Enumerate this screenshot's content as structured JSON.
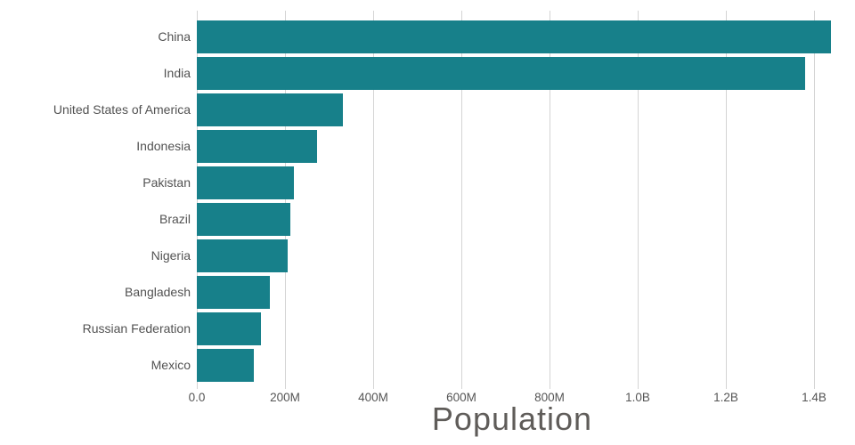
{
  "chart_data": {
    "type": "bar",
    "orientation": "horizontal",
    "title": "Population",
    "xlabel": "Population",
    "ylabel": "",
    "categories": [
      "China",
      "India",
      "United States of America",
      "Indonesia",
      "Pakistan",
      "Brazil",
      "Nigeria",
      "Bangladesh",
      "Russian Federation",
      "Mexico"
    ],
    "values_millions": [
      1439.3,
      1380.0,
      331.0,
      273.5,
      220.9,
      212.6,
      206.1,
      164.7,
      145.9,
      128.9
    ],
    "x_tick_labels": [
      "0.0",
      "200M",
      "400M",
      "600M",
      "800M",
      "1.0B",
      "1.2B",
      "1.4B"
    ],
    "x_tick_values_millions": [
      0,
      200,
      400,
      600,
      800,
      1000,
      1200,
      1400
    ],
    "xlim_millions": [
      0,
      1473
    ],
    "grid": true,
    "legend": false,
    "colors": {
      "bar": "#17808a",
      "gridline": "#d4d4d4",
      "tick_label": "#555555",
      "category_label": "#525252",
      "title": "#5f5c59",
      "background": "#ffffff"
    }
  }
}
